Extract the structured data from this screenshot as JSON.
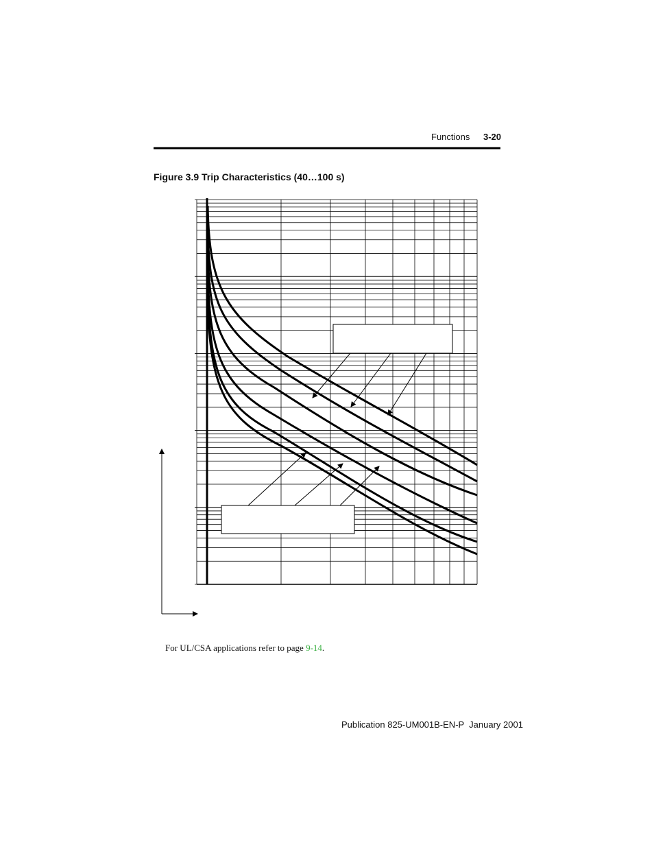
{
  "header": {
    "section": "Functions",
    "page": "3-20"
  },
  "figure": {
    "title": "Figure 3.9 Trip Characteristics (40…100 s)"
  },
  "footnote": {
    "text": "For UL/CSA applications refer to page ",
    "link": "9-14",
    "end": "."
  },
  "footer": {
    "text": "Publication 825-UM001B-EN-P  January 2001"
  }
}
